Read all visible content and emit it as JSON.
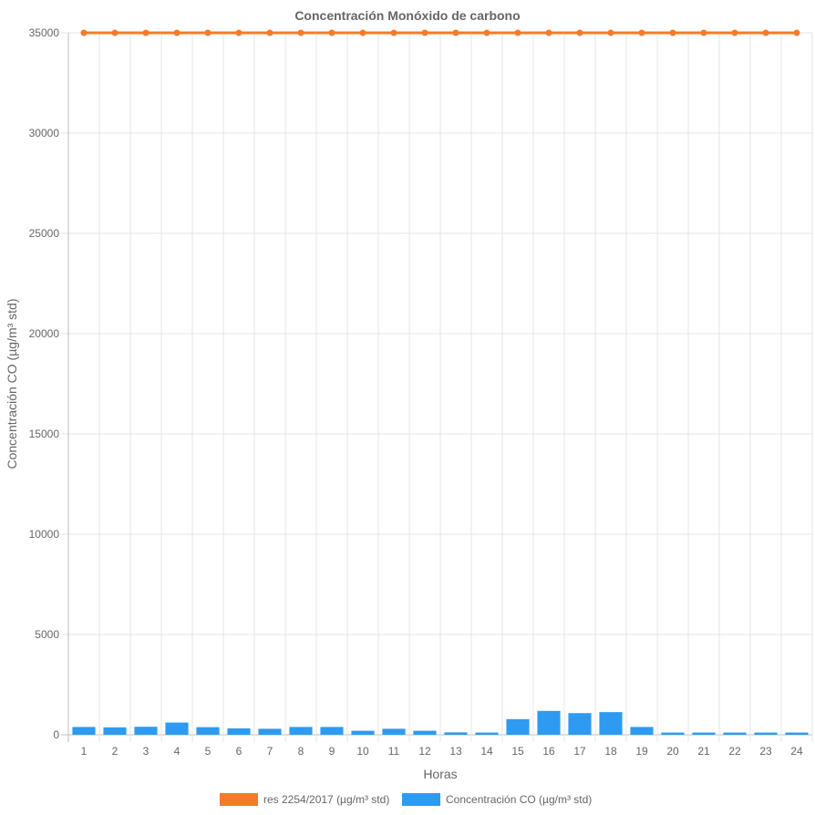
{
  "chart_data": {
    "type": "bar",
    "title": "Concentración Monóxido de carbono",
    "xlabel": "Horas",
    "ylabel": "Concentración CO (µg/m³ std)",
    "categories": [
      "1",
      "2",
      "3",
      "4",
      "5",
      "6",
      "7",
      "8",
      "9",
      "10",
      "11",
      "12",
      "13",
      "14",
      "15",
      "16",
      "17",
      "18",
      "19",
      "20",
      "21",
      "22",
      "23",
      "24"
    ],
    "y_ticks": [
      "0",
      "5000",
      "10000",
      "15000",
      "20000",
      "25000",
      "30000",
      "35000"
    ],
    "ylim": [
      0,
      35000
    ],
    "grid": true,
    "legend_position": "bottom",
    "series": [
      {
        "name": "res 2254/2017 (µg/m³ std)",
        "type": "line",
        "color": "#f47b2a",
        "values": [
          35000,
          35000,
          35000,
          35000,
          35000,
          35000,
          35000,
          35000,
          35000,
          35000,
          35000,
          35000,
          35000,
          35000,
          35000,
          35000,
          35000,
          35000,
          35000,
          35000,
          35000,
          35000,
          35000,
          35000
        ]
      },
      {
        "name": "Concentración CO (µg/m³ std)",
        "type": "bar",
        "color": "#2e9bf0",
        "values": [
          390,
          370,
          400,
          610,
          380,
          320,
          300,
          390,
          390,
          200,
          300,
          200,
          120,
          110,
          780,
          1190,
          1080,
          1130,
          390,
          110,
          110,
          110,
          110,
          110
        ]
      }
    ]
  }
}
